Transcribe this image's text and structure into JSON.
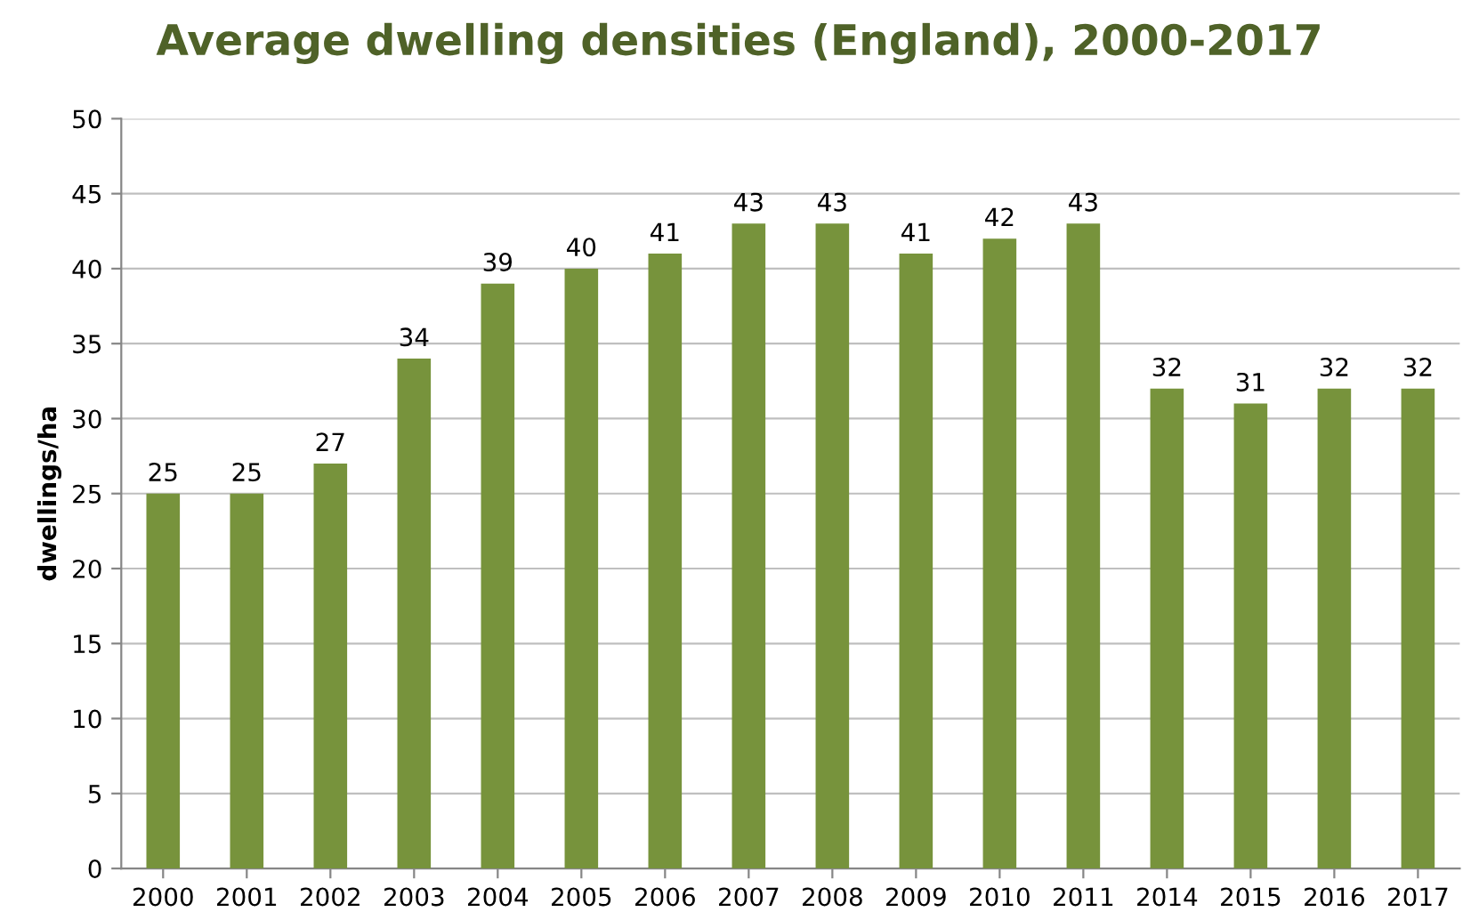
{
  "chart_data": {
    "type": "bar",
    "title": "Average dwelling densities (England), 2000-2017",
    "ylabel": "dwellings/ha",
    "categories": [
      "2000",
      "2001",
      "2002",
      "2003",
      "2004",
      "2005",
      "2006",
      "2007",
      "2008",
      "2009",
      "2010",
      "2011",
      "2014",
      "2015",
      "2016",
      "2017"
    ],
    "values": [
      25,
      25,
      27,
      34,
      39,
      40,
      41,
      43,
      43,
      41,
      42,
      43,
      32,
      31,
      32,
      32
    ],
    "color": "#77933c",
    "ylim": [
      0,
      50
    ],
    "yticks": [
      0,
      5,
      10,
      15,
      20,
      25,
      30,
      35,
      40,
      45,
      50
    ],
    "grid": "y",
    "data_labels": true
  }
}
